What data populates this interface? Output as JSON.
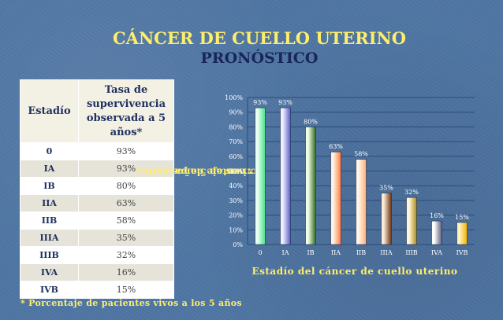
{
  "title": "CÁNCER DE CUELLO UTERINO",
  "subtitle": "PRONÓSTICO",
  "table": {
    "header_stage": "Estadío",
    "header_rate": "Tasa de supervivencia observada a 5 años*",
    "rows": [
      {
        "stage": "0",
        "rate": "93%"
      },
      {
        "stage": "IA",
        "rate": "93%"
      },
      {
        "stage": "IB",
        "rate": "80%"
      },
      {
        "stage": "IIA",
        "rate": "63%"
      },
      {
        "stage": "IIB",
        "rate": "58%"
      },
      {
        "stage": "IIIA",
        "rate": "35%"
      },
      {
        "stage": "IIIB",
        "rate": "32%"
      },
      {
        "stage": "IVA",
        "rate": "16%"
      },
      {
        "stage": "IVB",
        "rate": "15%"
      }
    ]
  },
  "footnote": "* Porcentaje de pacientes vivos a los 5 años",
  "chart_data": {
    "type": "bar",
    "categories": [
      "0",
      "IA",
      "IB",
      "IIA",
      "IIB",
      "IIIA",
      "IIIB",
      "IVA",
      "IVB"
    ],
    "values": [
      93,
      93,
      80,
      63,
      58,
      35,
      32,
      16,
      15
    ],
    "data_labels": [
      "93%",
      "93%",
      "80%",
      "63%",
      "58%",
      "35%",
      "32%",
      "16%",
      "15%"
    ],
    "xlabel": "Estadío del cáncer de cuello uterino",
    "ylabel_line1": "Porcentaje de pacientes",
    "ylabel_line2": "vivos en 5 años",
    "ylim": [
      0,
      100
    ],
    "yticks": [
      0,
      10,
      20,
      30,
      40,
      50,
      60,
      70,
      80,
      90,
      100
    ],
    "ytick_labels": [
      "0%",
      "10%",
      "20%",
      "30%",
      "40%",
      "50%",
      "60%",
      "70%",
      "80%",
      "90%",
      "100%"
    ],
    "grid": true,
    "legend": "none",
    "bar_colors": [
      [
        "#eafff2",
        "#47e08a"
      ],
      [
        "#eef0ff",
        "#5a5ac8"
      ],
      [
        "#f4ffe8",
        "#2a6a1c"
      ],
      [
        "#fff3e6",
        "#ff7a3a"
      ],
      [
        "#fff6ea",
        "#ffb074"
      ],
      [
        "#fbead8",
        "#6a3210"
      ],
      [
        "#fff8e0",
        "#b08a18"
      ],
      [
        "#ffffff",
        "#5a5a7a"
      ],
      [
        "#fff3c0",
        "#f2b200"
      ]
    ]
  }
}
